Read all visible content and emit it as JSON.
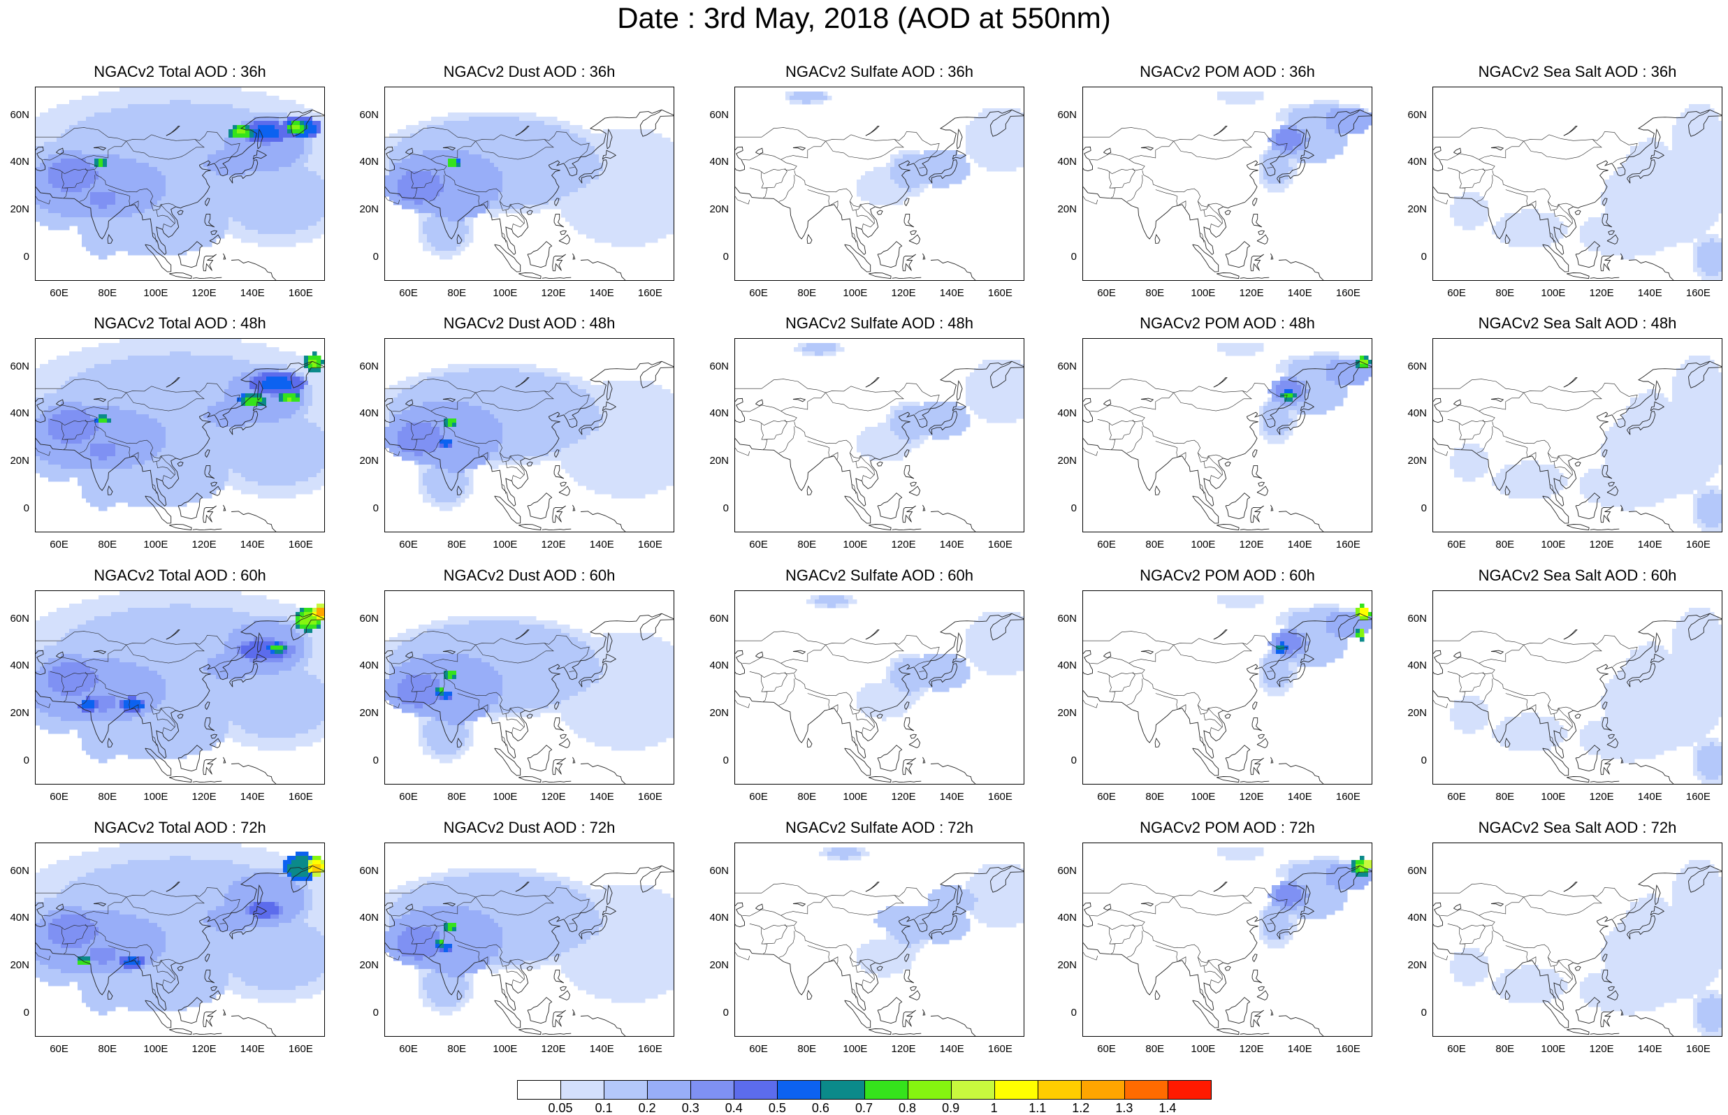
{
  "title": "Date : 3rd May, 2018 (AOD at 550nm)",
  "panel_titles": [
    [
      "NGACv2 Total AOD : 36h",
      "NGACv2 Dust AOD : 36h",
      "NGACv2 Sulfate AOD : 36h",
      "NGACv2 POM AOD : 36h",
      "NGACv2 Sea Salt AOD : 36h"
    ],
    [
      "NGACv2 Total AOD : 48h",
      "NGACv2 Dust AOD : 48h",
      "NGACv2 Sulfate AOD : 48h",
      "NGACv2 POM AOD : 48h",
      "NGACv2 Sea Salt AOD : 48h"
    ],
    [
      "NGACv2 Total AOD : 60h",
      "NGACv2 Dust AOD : 60h",
      "NGACv2 Sulfate AOD : 60h",
      "NGACv2 POM AOD : 60h",
      "NGACv2 Sea Salt AOD : 60h"
    ],
    [
      "NGACv2 Total AOD : 72h",
      "NGACv2 Dust AOD : 72h",
      "NGACv2 Sulfate AOD : 72h",
      "NGACv2 POM AOD : 72h",
      "NGACv2 Sea Salt  AOD : 72h"
    ]
  ],
  "lat_labels": [
    "60N",
    "40N",
    "20N",
    "0"
  ],
  "lon_labels": [
    "60E",
    "80E",
    "100E",
    "120E",
    "140E",
    "160E"
  ],
  "colorbar": {
    "labels": [
      "0.05",
      "0.1",
      "0.2",
      "0.3",
      "0.4",
      "0.5",
      "0.6",
      "0.7",
      "0.8",
      "0.9",
      "1",
      "1.1",
      "1.2",
      "1.3",
      "1.4"
    ],
    "colors": [
      "#ffffff",
      "#d4e0fc",
      "#b4c8fa",
      "#98aef8",
      "#7f91f3",
      "#5c6cec",
      "#0c62f0",
      "#0b8a8a",
      "#35e31c",
      "#85f510",
      "#c8f93e",
      "#ffff00",
      "#ffcd00",
      "#ffa500",
      "#ff6b00",
      "#ff1a00"
    ]
  }
}
